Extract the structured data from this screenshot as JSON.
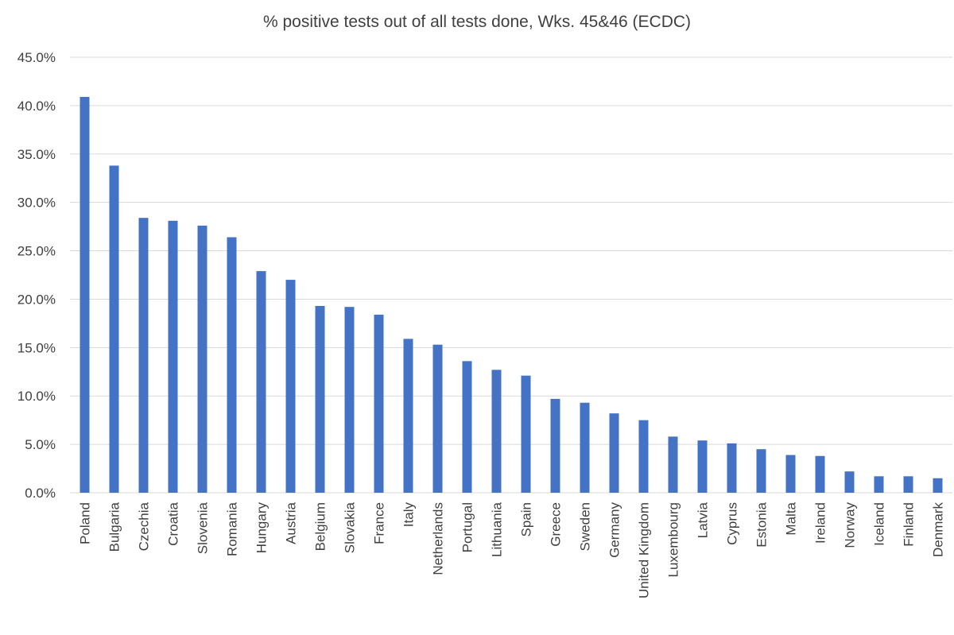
{
  "chart_data": {
    "type": "bar",
    "title": "% positive tests out of all tests done, Wks. 45&46 (ECDC)",
    "xlabel": "",
    "ylabel": "",
    "ylim": [
      0,
      45
    ],
    "y_ticks": [
      "0.0%",
      "5.0%",
      "10.0%",
      "15.0%",
      "20.0%",
      "25.0%",
      "30.0%",
      "35.0%",
      "40.0%",
      "45.0%"
    ],
    "grid": "horizontal",
    "bar_color": "#4472C4",
    "categories": [
      "Poland",
      "Bulgaria",
      "Czechia",
      "Croatia",
      "Slovenia",
      "Romania",
      "Hungary",
      "Austria",
      "Belgium",
      "Slovakia",
      "France",
      "Italy",
      "Netherlands",
      "Portugal",
      "Lithuania",
      "Spain",
      "Greece",
      "Sweden",
      "Germany",
      "United Kingdom",
      "Luxembourg",
      "Latvia",
      "Cyprus",
      "Estonia",
      "Malta",
      "Ireland",
      "Norway",
      "Iceland",
      "Finland",
      "Denmark"
    ],
    "values": [
      40.9,
      33.8,
      28.4,
      28.1,
      27.6,
      26.4,
      22.9,
      22.0,
      19.3,
      19.2,
      18.4,
      15.9,
      15.3,
      13.6,
      12.7,
      12.1,
      9.7,
      9.3,
      8.2,
      7.5,
      5.8,
      5.4,
      5.1,
      4.5,
      3.9,
      3.8,
      2.2,
      1.7,
      1.7,
      1.5
    ]
  }
}
